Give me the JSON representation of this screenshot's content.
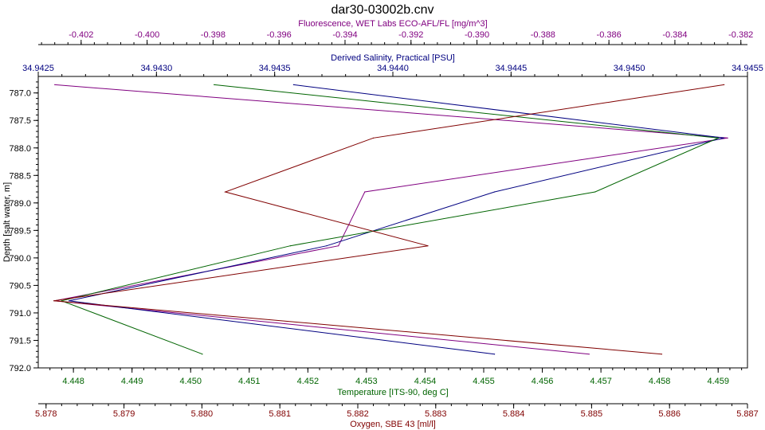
{
  "chart_data": {
    "type": "line",
    "title": "dar30-03002b.cnv",
    "y_axis": {
      "label": "Depth [salt water, m]",
      "range": [
        786.7,
        792.0
      ],
      "ticks": [
        787.0,
        787.5,
        788.0,
        788.5,
        789.0,
        789.5,
        790.0,
        790.5,
        791.0,
        791.5,
        792.0
      ],
      "tick_labels": [
        "787.0",
        "787.5",
        "788.0",
        "788.5",
        "789.0",
        "789.5",
        "790.0",
        "790.5",
        "791.0",
        "791.5",
        "792.0"
      ],
      "inverted": true
    },
    "x_axes": [
      {
        "id": "fluorescence",
        "label": "Fluorescence, WET Labs ECO-AFL/FL [mg/m^3]",
        "placement": "top-outer",
        "color": "#800080",
        "range": [
          -0.4033,
          -0.3818
        ],
        "ticks": [
          -0.402,
          -0.4,
          -0.398,
          -0.396,
          -0.394,
          -0.392,
          -0.39,
          -0.388,
          -0.386,
          -0.384,
          -0.382
        ],
        "tick_labels": [
          "-0.402",
          "-0.400",
          "-0.398",
          "-0.396",
          "-0.394",
          "-0.392",
          "-0.390",
          "-0.388",
          "-0.386",
          "-0.384",
          "-0.382"
        ]
      },
      {
        "id": "salinity",
        "label": "Derived Salinity, Practical [PSU]",
        "placement": "top-inner",
        "color": "#000080",
        "range": [
          34.9425,
          34.9455
        ],
        "ticks": [
          34.9425,
          34.943,
          34.9435,
          34.944,
          34.9445,
          34.945,
          34.9455
        ],
        "tick_labels": [
          "34.9425",
          "34.9430",
          "34.9435",
          "34.9440",
          "34.9445",
          "34.9450",
          "34.9455"
        ]
      },
      {
        "id": "temperature",
        "label": "Temperature [ITS-90, deg C]",
        "placement": "bottom-inner",
        "color": "#006400",
        "range": [
          4.4474,
          4.4595
        ],
        "ticks": [
          4.448,
          4.449,
          4.45,
          4.451,
          4.452,
          4.453,
          4.454,
          4.455,
          4.456,
          4.457,
          4.458,
          4.459
        ],
        "tick_labels": [
          "4.448",
          "4.449",
          "4.450",
          "4.451",
          "4.452",
          "4.453",
          "4.454",
          "4.455",
          "4.456",
          "4.457",
          "4.458",
          "4.459"
        ]
      },
      {
        "id": "oxygen",
        "label": "Oxygen, SBE 43 [ml/l]",
        "placement": "bottom-outer",
        "color": "#800000",
        "range": [
          5.8779,
          5.887
        ],
        "ticks": [
          5.878,
          5.879,
          5.88,
          5.881,
          5.882,
          5.883,
          5.884,
          5.885,
          5.886,
          5.887
        ],
        "tick_labels": [
          "5.878",
          "5.879",
          "5.880",
          "5.881",
          "5.882",
          "5.883",
          "5.884",
          "5.885",
          "5.886",
          "5.887"
        ]
      }
    ],
    "series": [
      {
        "axis": "fluorescence",
        "color": "#800080",
        "points": [
          {
            "x": -0.4028,
            "y": 786.85
          },
          {
            "x": -0.3824,
            "y": 787.82
          },
          {
            "x": -0.3934,
            "y": 788.8
          },
          {
            "x": -0.3942,
            "y": 789.78
          },
          {
            "x": -0.4028,
            "y": 790.78
          },
          {
            "x": -0.3866,
            "y": 791.75
          }
        ]
      },
      {
        "axis": "salinity",
        "color": "#000080",
        "points": [
          {
            "x": 34.94358,
            "y": 786.85
          },
          {
            "x": 34.9454,
            "y": 787.82
          },
          {
            "x": 34.94443,
            "y": 788.8
          },
          {
            "x": 34.94372,
            "y": 789.78
          },
          {
            "x": 34.94263,
            "y": 790.78
          },
          {
            "x": 34.94443,
            "y": 791.75
          }
        ]
      },
      {
        "axis": "temperature",
        "color": "#006400",
        "points": [
          {
            "x": 4.4504,
            "y": 786.85
          },
          {
            "x": 4.459,
            "y": 787.82
          },
          {
            "x": 4.4569,
            "y": 788.8
          },
          {
            "x": 4.4517,
            "y": 789.78
          },
          {
            "x": 4.4478,
            "y": 790.78
          },
          {
            "x": 4.4502,
            "y": 791.75
          }
        ]
      },
      {
        "axis": "oxygen",
        "color": "#800000",
        "points": [
          {
            "x": 5.8867,
            "y": 786.85
          },
          {
            "x": 5.8822,
            "y": 787.82
          },
          {
            "x": 5.8803,
            "y": 788.8
          },
          {
            "x": 5.8829,
            "y": 789.78
          },
          {
            "x": 5.8781,
            "y": 790.78
          },
          {
            "x": 5.8859,
            "y": 791.75
          }
        ]
      }
    ],
    "grid": false,
    "legend": "none"
  }
}
